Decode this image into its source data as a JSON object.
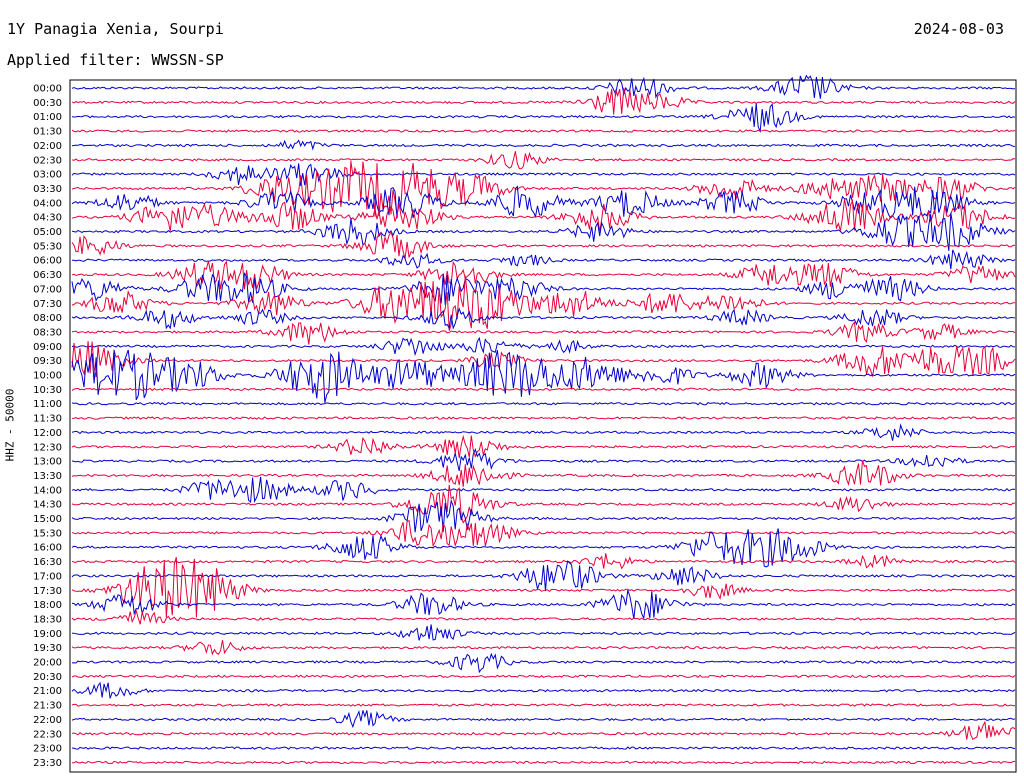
{
  "header": {
    "station": "1Y Panagia Xenia, Sourpi",
    "date": "2024-08-03",
    "filter": "Applied filter: WWSSN-SP",
    "channel": "HHZ - 50000"
  },
  "chart_data": {
    "type": "line",
    "subtype": "helicorder",
    "colors": [
      "#0000cc",
      "#e8003a"
    ],
    "time_axis": "minutes 0-30 per row",
    "rows": [
      {
        "label": "00:00",
        "activity": [
          [
            0.6,
            12
          ],
          [
            0.78,
            14
          ]
        ]
      },
      {
        "label": "00:30",
        "activity": [
          [
            0.58,
            14
          ],
          [
            0.63,
            6
          ]
        ]
      },
      {
        "label": "01:00",
        "activity": [
          [
            0.73,
            14
          ]
        ]
      },
      {
        "label": "01:30",
        "activity": []
      },
      {
        "label": "02:00",
        "activity": [
          [
            0.24,
            5
          ]
        ]
      },
      {
        "label": "02:30",
        "activity": [
          [
            0.47,
            9
          ]
        ]
      },
      {
        "label": "03:00",
        "activity": [
          [
            0.18,
            10
          ],
          [
            0.25,
            12
          ]
        ]
      },
      {
        "label": "03:30",
        "activity": [
          [
            0.22,
            14
          ],
          [
            0.28,
            18
          ],
          [
            0.33,
            22
          ],
          [
            0.38,
            16
          ],
          [
            0.43,
            12
          ],
          [
            0.7,
            12
          ],
          [
            0.8,
            10
          ],
          [
            0.86,
            14
          ],
          [
            0.93,
            12
          ]
        ]
      },
      {
        "label": "04:00",
        "activity": [
          [
            0.06,
            10
          ],
          [
            0.22,
            12
          ],
          [
            0.35,
            16
          ],
          [
            0.48,
            16
          ],
          [
            0.59,
            14
          ],
          [
            0.7,
            12
          ],
          [
            0.85,
            14
          ],
          [
            0.91,
            16
          ]
        ]
      },
      {
        "label": "04:30",
        "activity": [
          [
            0.1,
            14
          ],
          [
            0.15,
            10
          ],
          [
            0.23,
            14
          ],
          [
            0.35,
            16
          ],
          [
            0.56,
            14
          ],
          [
            0.82,
            18
          ],
          [
            0.94,
            14
          ]
        ]
      },
      {
        "label": "05:00",
        "activity": [
          [
            0.3,
            14
          ],
          [
            0.56,
            10
          ],
          [
            0.87,
            14
          ],
          [
            0.93,
            18
          ]
        ]
      },
      {
        "label": "05:30",
        "activity": [
          [
            0.02,
            10
          ],
          [
            0.34,
            14
          ]
        ]
      },
      {
        "label": "06:00",
        "activity": [
          [
            0.36,
            8
          ],
          [
            0.48,
            6
          ],
          [
            0.94,
            10
          ]
        ]
      },
      {
        "label": "06:30",
        "activity": [
          [
            0.14,
            12
          ],
          [
            0.19,
            14
          ],
          [
            0.41,
            14
          ],
          [
            0.74,
            12
          ],
          [
            0.8,
            12
          ],
          [
            0.96,
            10
          ]
        ]
      },
      {
        "label": "07:00",
        "activity": [
          [
            0.02,
            12
          ],
          [
            0.14,
            12
          ],
          [
            0.19,
            14
          ],
          [
            0.4,
            16
          ],
          [
            0.47,
            12
          ],
          [
            0.81,
            10
          ],
          [
            0.87,
            12
          ]
        ]
      },
      {
        "label": "07:30",
        "activity": [
          [
            0.05,
            12
          ],
          [
            0.21,
            12
          ],
          [
            0.34,
            18
          ],
          [
            0.4,
            22
          ],
          [
            0.45,
            18
          ],
          [
            0.53,
            14
          ],
          [
            0.63,
            12
          ],
          [
            0.7,
            10
          ]
        ]
      },
      {
        "label": "08:00",
        "activity": [
          [
            0.1,
            10
          ],
          [
            0.2,
            8
          ],
          [
            0.4,
            10
          ],
          [
            0.71,
            8
          ],
          [
            0.85,
            10
          ]
        ]
      },
      {
        "label": "08:30",
        "activity": [
          [
            0.25,
            12
          ],
          [
            0.84,
            10
          ],
          [
            0.92,
            8
          ]
        ]
      },
      {
        "label": "09:00",
        "activity": [
          [
            0.36,
            10
          ],
          [
            0.44,
            8
          ],
          [
            0.52,
            6
          ]
        ]
      },
      {
        "label": "09:30",
        "activity": [
          [
            0.01,
            20
          ],
          [
            0.45,
            8
          ],
          [
            0.85,
            16
          ],
          [
            0.92,
            14
          ],
          [
            0.97,
            12
          ]
        ]
      },
      {
        "label": "10:00",
        "activity": [
          [
            0.02,
            16
          ],
          [
            0.07,
            22
          ],
          [
            0.13,
            12
          ],
          [
            0.25,
            14
          ],
          [
            0.28,
            18
          ],
          [
            0.36,
            16
          ],
          [
            0.44,
            14
          ],
          [
            0.48,
            20
          ],
          [
            0.55,
            16
          ],
          [
            0.63,
            10
          ],
          [
            0.73,
            12
          ]
        ]
      },
      {
        "label": "10:30",
        "activity": []
      },
      {
        "label": "11:00",
        "activity": []
      },
      {
        "label": "11:30",
        "activity": []
      },
      {
        "label": "12:00",
        "activity": [
          [
            0.87,
            8
          ]
        ]
      },
      {
        "label": "12:30",
        "activity": [
          [
            0.31,
            10
          ],
          [
            0.42,
            12
          ]
        ]
      },
      {
        "label": "13:00",
        "activity": [
          [
            0.42,
            12
          ],
          [
            0.91,
            8
          ]
        ]
      },
      {
        "label": "13:30",
        "activity": [
          [
            0.42,
            14
          ],
          [
            0.84,
            14
          ]
        ]
      },
      {
        "label": "14:00",
        "activity": [
          [
            0.15,
            10
          ],
          [
            0.2,
            12
          ],
          [
            0.29,
            10
          ]
        ]
      },
      {
        "label": "14:30",
        "activity": [
          [
            0.4,
            20
          ],
          [
            0.83,
            8
          ]
        ]
      },
      {
        "label": "15:00",
        "activity": [
          [
            0.37,
            10
          ],
          [
            0.4,
            14
          ]
        ]
      },
      {
        "label": "15:30",
        "activity": [
          [
            0.37,
            14
          ],
          [
            0.43,
            14
          ]
        ]
      },
      {
        "label": "16:00",
        "activity": [
          [
            0.31,
            14
          ],
          [
            0.68,
            14
          ],
          [
            0.73,
            16
          ],
          [
            0.77,
            10
          ]
        ]
      },
      {
        "label": "16:30",
        "activity": [
          [
            0.57,
            8
          ],
          [
            0.85,
            6
          ]
        ]
      },
      {
        "label": "17:00",
        "activity": [
          [
            0.5,
            10
          ],
          [
            0.53,
            12
          ],
          [
            0.65,
            10
          ]
        ]
      },
      {
        "label": "17:30",
        "activity": [
          [
            0.07,
            12
          ],
          [
            0.1,
            14
          ],
          [
            0.12,
            16
          ],
          [
            0.15,
            14
          ],
          [
            0.68,
            8
          ]
        ]
      },
      {
        "label": "18:00",
        "activity": [
          [
            0.06,
            12
          ],
          [
            0.38,
            12
          ],
          [
            0.6,
            16
          ]
        ]
      },
      {
        "label": "18:30",
        "activity": [
          [
            0.07,
            8
          ]
        ]
      },
      {
        "label": "19:00",
        "activity": [
          [
            0.38,
            10
          ]
        ]
      },
      {
        "label": "19:30",
        "activity": [
          [
            0.15,
            8
          ]
        ]
      },
      {
        "label": "20:00",
        "activity": [
          [
            0.43,
            10
          ]
        ]
      },
      {
        "label": "20:30",
        "activity": []
      },
      {
        "label": "21:00",
        "activity": [
          [
            0.04,
            8
          ]
        ]
      },
      {
        "label": "21:30",
        "activity": []
      },
      {
        "label": "22:00",
        "activity": [
          [
            0.31,
            8
          ]
        ]
      },
      {
        "label": "22:30",
        "activity": [
          [
            0.97,
            12
          ]
        ]
      },
      {
        "label": "23:00",
        "activity": []
      },
      {
        "label": "23:30",
        "activity": []
      }
    ]
  }
}
